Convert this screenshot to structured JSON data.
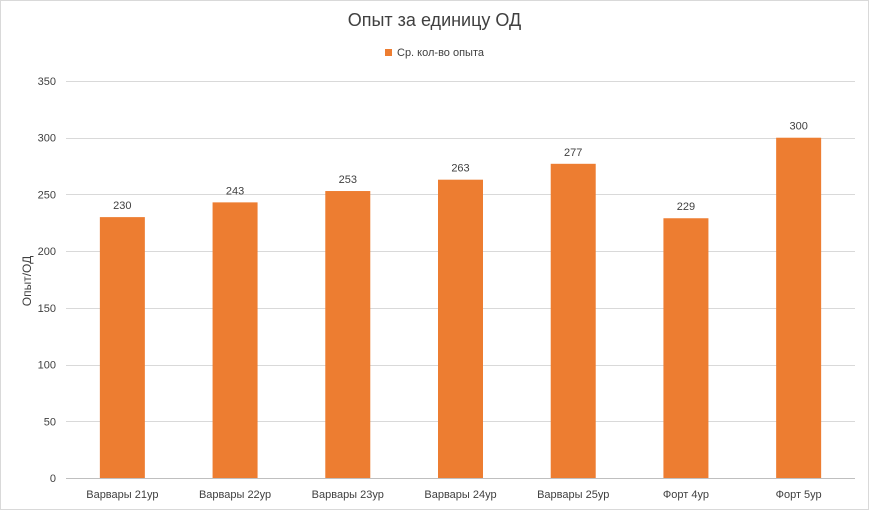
{
  "chart_data": {
    "type": "bar",
    "title": "Опыт за единицу ОД",
    "xlabel": "",
    "ylabel": "Опыт/ОД",
    "categories": [
      "Варвары 21ур",
      "Варвары 22ур",
      "Варвары 23ур",
      "Варвары 24ур",
      "Варвары 25ур",
      "Форт 4ур",
      "Форт 5ур"
    ],
    "series": [
      {
        "name": "Ср. кол-во опыта",
        "values": [
          230,
          243,
          253,
          263,
          277,
          229,
          300
        ],
        "color": "#ed7d31"
      }
    ],
    "ylim": [
      0,
      350
    ],
    "yticks": [
      0,
      50,
      100,
      150,
      200,
      250,
      300,
      350
    ],
    "grid": true,
    "legend_position": "top",
    "data_labels": true
  }
}
